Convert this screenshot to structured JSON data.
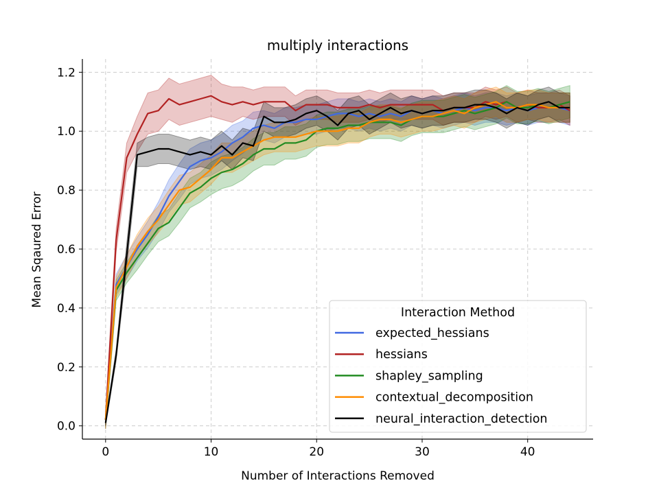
{
  "chart_data": {
    "type": "line",
    "title": "multiply interactions",
    "xlabel": "Number of Interactions Removed",
    "ylabel": "Mean Sqaured Error",
    "xlim": [
      -2.2,
      46.2
    ],
    "ylim": [
      -0.045,
      1.245
    ],
    "xticks": [
      0,
      10,
      20,
      30,
      40
    ],
    "yticks": [
      0.0,
      0.2,
      0.4,
      0.6,
      0.8,
      1.0,
      1.2
    ],
    "ytick_labels": [
      "0.0",
      "0.2",
      "0.4",
      "0.6",
      "0.8",
      "1.0",
      "1.2"
    ],
    "grid": true,
    "legend": {
      "title": "Interaction Method",
      "placement": "lower-right"
    },
    "series": [
      {
        "name": "expected_hessians",
        "color": "#4169e1",
        "values": [
          0.02,
          0.48,
          0.54,
          0.6,
          0.65,
          0.71,
          0.78,
          0.83,
          0.88,
          0.9,
          0.91,
          0.93,
          0.96,
          0.98,
          1.01,
          1.02,
          1.01,
          1.03,
          1.03,
          1.04,
          1.04,
          1.05,
          1.06,
          1.06,
          1.05,
          1.06,
          1.05,
          1.06,
          1.05,
          1.07,
          1.06,
          1.07,
          1.06,
          1.07,
          1.08,
          1.07,
          1.08,
          1.08,
          1.07,
          1.08,
          1.07,
          1.08,
          1.08,
          1.08,
          1.07
        ],
        "band": [
          0.03,
          0.035,
          0.04,
          0.04,
          0.045,
          0.05,
          0.055,
          0.06,
          0.06,
          0.06,
          0.06,
          0.06,
          0.06,
          0.055,
          0.055,
          0.05,
          0.05,
          0.05,
          0.05,
          0.05,
          0.05,
          0.05,
          0.05,
          0.05,
          0.05,
          0.05,
          0.05,
          0.05,
          0.05,
          0.05,
          0.05,
          0.05,
          0.05,
          0.05,
          0.05,
          0.05,
          0.05,
          0.05,
          0.05,
          0.05,
          0.05,
          0.05,
          0.05,
          0.05,
          0.05
        ]
      },
      {
        "name": "hessians",
        "color": "#b22222",
        "values": [
          0.02,
          0.63,
          0.91,
          0.99,
          1.06,
          1.07,
          1.11,
          1.09,
          1.1,
          1.11,
          1.12,
          1.1,
          1.09,
          1.1,
          1.09,
          1.1,
          1.1,
          1.1,
          1.07,
          1.09,
          1.09,
          1.09,
          1.08,
          1.08,
          1.08,
          1.09,
          1.08,
          1.09,
          1.09,
          1.09,
          1.09,
          1.09,
          1.07,
          1.08,
          1.08,
          1.08,
          1.1,
          1.09,
          1.1,
          1.08,
          1.09,
          1.08,
          1.08,
          1.09,
          1.07
        ],
        "band": [
          0.03,
          0.04,
          0.05,
          0.06,
          0.07,
          0.07,
          0.07,
          0.07,
          0.07,
          0.07,
          0.07,
          0.06,
          0.06,
          0.05,
          0.05,
          0.05,
          0.05,
          0.05,
          0.05,
          0.05,
          0.05,
          0.05,
          0.05,
          0.05,
          0.05,
          0.05,
          0.05,
          0.05,
          0.05,
          0.05,
          0.05,
          0.05,
          0.05,
          0.05,
          0.05,
          0.05,
          0.05,
          0.05,
          0.05,
          0.05,
          0.05,
          0.05,
          0.05,
          0.05,
          0.05
        ]
      },
      {
        "name": "shapley_sampling",
        "color": "#228b22",
        "values": [
          0.02,
          0.46,
          0.52,
          0.57,
          0.62,
          0.67,
          0.69,
          0.74,
          0.79,
          0.81,
          0.84,
          0.86,
          0.87,
          0.89,
          0.92,
          0.94,
          0.94,
          0.96,
          0.96,
          0.97,
          1.0,
          1.01,
          1.01,
          1.02,
          1.02,
          1.03,
          1.03,
          1.03,
          1.02,
          1.04,
          1.05,
          1.05,
          1.05,
          1.06,
          1.07,
          1.06,
          1.07,
          1.08,
          1.1,
          1.08,
          1.08,
          1.09,
          1.08,
          1.09,
          1.1
        ],
        "band": [
          0.03,
          0.035,
          0.035,
          0.04,
          0.04,
          0.045,
          0.045,
          0.05,
          0.05,
          0.05,
          0.055,
          0.055,
          0.055,
          0.055,
          0.055,
          0.055,
          0.055,
          0.055,
          0.055,
          0.055,
          0.055,
          0.055,
          0.055,
          0.055,
          0.055,
          0.055,
          0.055,
          0.055,
          0.055,
          0.055,
          0.055,
          0.055,
          0.055,
          0.055,
          0.055,
          0.055,
          0.055,
          0.055,
          0.055,
          0.055,
          0.055,
          0.055,
          0.055,
          0.055,
          0.055
        ]
      },
      {
        "name": "contextual_decomposition",
        "color": "#ff8c00",
        "values": [
          0.02,
          0.47,
          0.54,
          0.61,
          0.66,
          0.7,
          0.75,
          0.8,
          0.81,
          0.84,
          0.87,
          0.91,
          0.91,
          0.93,
          0.95,
          0.97,
          0.98,
          0.98,
          0.98,
          0.99,
          1.0,
          1.0,
          1.0,
          1.01,
          1.01,
          1.03,
          1.04,
          1.04,
          1.03,
          1.04,
          1.05,
          1.05,
          1.06,
          1.07,
          1.06,
          1.08,
          1.09,
          1.1,
          1.08,
          1.08,
          1.09,
          1.09,
          1.08,
          1.08,
          1.08
        ],
        "band": [
          0.03,
          0.035,
          0.04,
          0.04,
          0.045,
          0.045,
          0.05,
          0.05,
          0.05,
          0.05,
          0.05,
          0.05,
          0.05,
          0.05,
          0.05,
          0.05,
          0.05,
          0.05,
          0.05,
          0.05,
          0.05,
          0.05,
          0.05,
          0.05,
          0.05,
          0.05,
          0.05,
          0.05,
          0.05,
          0.05,
          0.05,
          0.05,
          0.05,
          0.05,
          0.05,
          0.05,
          0.05,
          0.05,
          0.05,
          0.05,
          0.05,
          0.05,
          0.05,
          0.05,
          0.05
        ]
      },
      {
        "name": "neural_interaction_detection",
        "color": "#000000",
        "values": [
          0.01,
          0.24,
          0.58,
          0.92,
          0.93,
          0.94,
          0.94,
          0.93,
          0.92,
          0.93,
          0.92,
          0.95,
          0.92,
          0.96,
          0.95,
          1.05,
          1.03,
          1.03,
          1.04,
          1.06,
          1.07,
          1.05,
          1.02,
          1.06,
          1.07,
          1.04,
          1.06,
          1.08,
          1.06,
          1.07,
          1.06,
          1.07,
          1.07,
          1.08,
          1.08,
          1.09,
          1.09,
          1.08,
          1.06,
          1.08,
          1.07,
          1.09,
          1.1,
          1.08,
          1.08
        ],
        "band": [
          0.01,
          0.02,
          0.04,
          0.04,
          0.05,
          0.05,
          0.05,
          0.05,
          0.05,
          0.05,
          0.05,
          0.05,
          0.05,
          0.05,
          0.05,
          0.05,
          0.05,
          0.05,
          0.05,
          0.05,
          0.05,
          0.05,
          0.05,
          0.05,
          0.05,
          0.05,
          0.05,
          0.05,
          0.05,
          0.05,
          0.05,
          0.05,
          0.05,
          0.05,
          0.05,
          0.05,
          0.05,
          0.05,
          0.05,
          0.05,
          0.05,
          0.05,
          0.05,
          0.05,
          0.05
        ]
      }
    ]
  }
}
